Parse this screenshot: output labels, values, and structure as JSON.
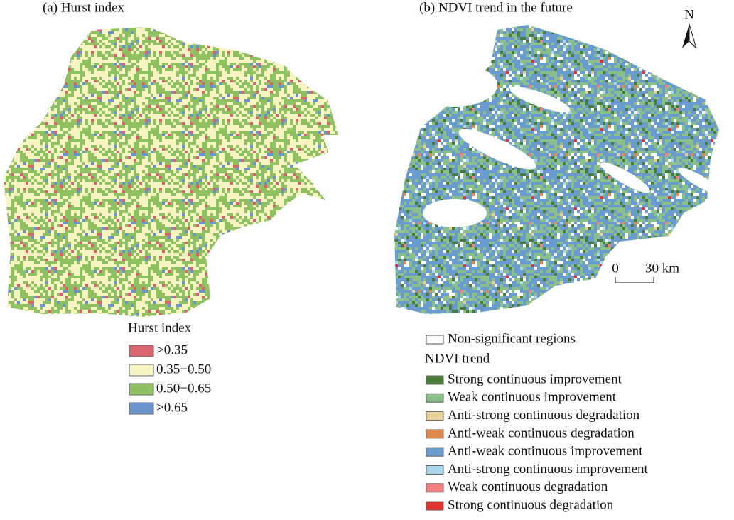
{
  "panels": [
    {
      "title": "(a) Hurst index",
      "legend": {
        "title": "Hurst index",
        "items": [
          {
            "label": ">0.35",
            "color": "#d9646e"
          },
          {
            "label": "0.35−0.50",
            "color": "#f7f4c4"
          },
          {
            "label": "0.50−0.65",
            "color": "#8fc163"
          },
          {
            "label": ">0.65",
            "color": "#6a93cc"
          }
        ]
      }
    },
    {
      "title": "(b) NDVI trend in the future",
      "legend": {
        "note": "Non-significant regions",
        "title": "NDVI trend",
        "items": [
          {
            "label": "Strong continuous improvement",
            "color": "#4a7c3a"
          },
          {
            "label": "Weak continuous improvement",
            "color": "#8cc08a"
          },
          {
            "label": "Anti-strong continuous degradation",
            "color": "#e8cf99"
          },
          {
            "label": "Anti-weak continuous degradation",
            "color": "#e08a50"
          },
          {
            "label": "Anti-weak continuous improvement",
            "color": "#6a9bcf"
          },
          {
            "label": "Anti-strong continuous improvement",
            "color": "#a9d4ee"
          },
          {
            "label": "Weak continuous degradation",
            "color": "#f08080"
          },
          {
            "label": "Strong continuous degradation",
            "color": "#e03030"
          }
        ]
      }
    }
  ],
  "north": "N",
  "scale_bar": {
    "labels": [
      "0",
      "30 km"
    ]
  }
}
